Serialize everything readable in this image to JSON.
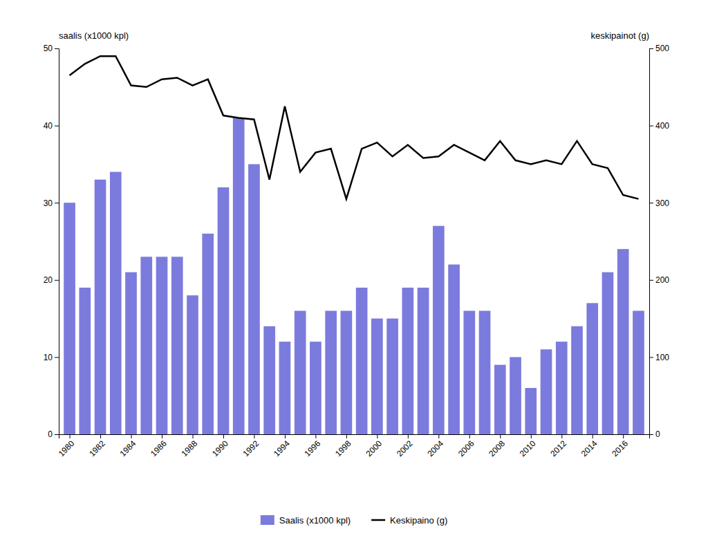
{
  "chart_data": {
    "type": "bar",
    "ylabel": "saalis (x1000 kpl)",
    "y2label": "keskipainot (g)",
    "x": [
      1980,
      1981,
      1982,
      1983,
      1984,
      1985,
      1986,
      1987,
      1988,
      1989,
      1990,
      1991,
      1992,
      1993,
      1994,
      1995,
      1996,
      1997,
      1998,
      1999,
      2000,
      2001,
      2002,
      2003,
      2004,
      2005,
      2006,
      2007,
      2008,
      2009,
      2010,
      2011,
      2012,
      2013,
      2014,
      2015,
      2016,
      2017
    ],
    "series": [
      {
        "name": "Saalis (x1000 kpl)",
        "type": "bar",
        "color": "#7b7bde",
        "values": [
          30,
          19,
          33,
          34,
          21,
          23,
          23,
          23,
          18,
          26,
          32,
          41,
          35,
          14,
          12,
          16,
          12,
          16,
          16,
          19,
          15,
          15,
          19,
          19,
          27,
          22,
          16,
          16,
          9,
          10,
          6,
          11,
          12,
          14,
          17,
          21,
          24,
          16
        ]
      },
      {
        "name": "Keskipaino (g)",
        "type": "line",
        "color": "#000000",
        "axis": "y2",
        "values": [
          465,
          480,
          490,
          490,
          452,
          450,
          460,
          462,
          452,
          460,
          413,
          410,
          408,
          330,
          425,
          340,
          365,
          370,
          305,
          370,
          378,
          360,
          375,
          358,
          360,
          375,
          365,
          355,
          380,
          355,
          350,
          355,
          350,
          380,
          350,
          345,
          310,
          305
        ]
      }
    ],
    "xlim": [
      1979.3,
      2017.7
    ],
    "xticks": [
      1980,
      1982,
      1984,
      1986,
      1988,
      1990,
      1992,
      1994,
      1996,
      1998,
      2000,
      2002,
      2004,
      2006,
      2008,
      2010,
      2012,
      2014,
      2016
    ],
    "ylim": [
      0,
      50
    ],
    "yticks": [
      0,
      10,
      20,
      30,
      40,
      50
    ],
    "y2lim": [
      0,
      500
    ],
    "y2ticks": [
      0,
      100,
      200,
      300,
      400,
      500
    ],
    "grid": false,
    "legend": "bottom"
  }
}
